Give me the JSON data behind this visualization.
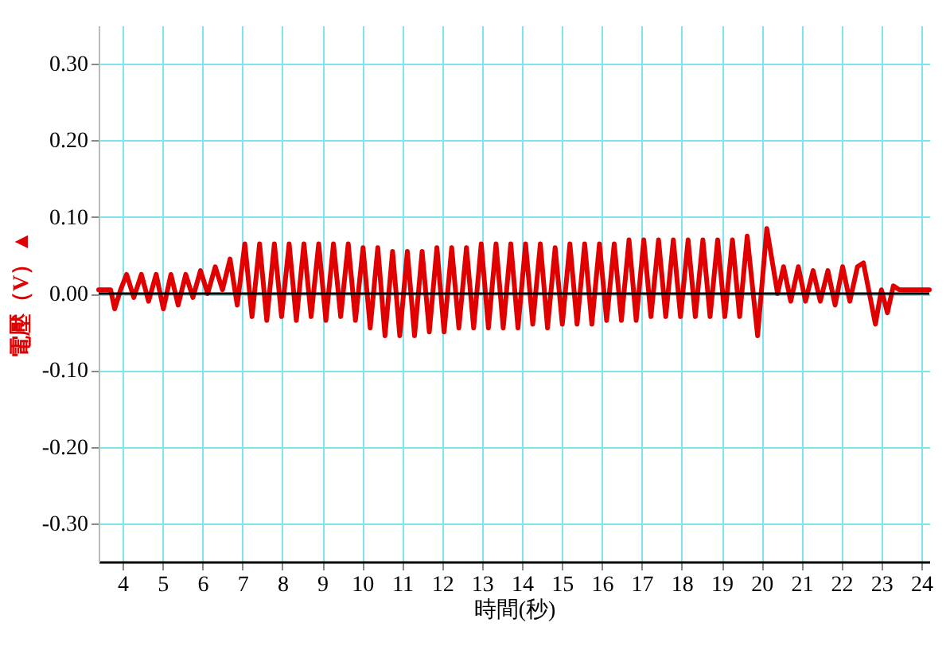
{
  "chart_data": {
    "type": "line",
    "xlabel": "時間(秒)",
    "ylabel": "電壓（V）▲",
    "xlim": [
      3.4,
      24.2
    ],
    "xticks": [
      4,
      5,
      6,
      7,
      8,
      9,
      10,
      11,
      12,
      13,
      14,
      15,
      16,
      17,
      18,
      19,
      20,
      21,
      22,
      23,
      24
    ],
    "ylim": [
      -0.35,
      0.35
    ],
    "yticks": [
      {
        "value": -0.3,
        "label": "-0.30"
      },
      {
        "value": -0.2,
        "label": "-0.20"
      },
      {
        "value": -0.1,
        "label": "-0.10"
      },
      {
        "value": 0,
        "label": "0.00"
      },
      {
        "value": 0.1,
        "label": "0.10"
      },
      {
        "value": 0.2,
        "label": "0.20"
      },
      {
        "value": 0.3,
        "label": "0.30"
      }
    ],
    "grid": true,
    "marker": "none",
    "line_style": "solid",
    "ref_lines": [
      {
        "axis": "y",
        "value": 0,
        "color": "#000000"
      }
    ],
    "series": [
      {
        "color": "#e00000",
        "x": [
          3.4,
          3.7,
          3.8,
          3.95,
          4.1,
          4.28,
          4.47,
          4.65,
          4.84,
          5.02,
          5.21,
          5.39,
          5.58,
          5.76,
          5.95,
          6.13,
          6.32,
          6.5,
          6.69,
          6.87,
          7.06,
          7.24,
          7.43,
          7.61,
          7.8,
          7.98,
          8.17,
          8.35,
          8.54,
          8.72,
          8.91,
          9.09,
          9.28,
          9.46,
          9.65,
          9.83,
          10.02,
          10.2,
          10.39,
          10.57,
          10.76,
          10.94,
          11.13,
          11.31,
          11.5,
          11.68,
          11.87,
          12.05,
          12.24,
          12.42,
          12.61,
          12.79,
          12.98,
          13.16,
          13.35,
          13.53,
          13.72,
          13.9,
          14.09,
          14.27,
          14.46,
          14.64,
          14.83,
          15.01,
          15.2,
          15.38,
          15.57,
          15.75,
          15.94,
          16.12,
          16.31,
          16.49,
          16.68,
          16.86,
          17.05,
          17.23,
          17.42,
          17.6,
          17.79,
          17.97,
          18.16,
          18.34,
          18.53,
          18.71,
          18.9,
          19.08,
          19.27,
          19.45,
          19.64,
          19.9,
          20.13,
          20.4,
          20.55,
          20.73,
          20.92,
          21.1,
          21.29,
          21.47,
          21.66,
          21.84,
          22.03,
          22.21,
          22.4,
          22.55,
          22.85,
          23.0,
          23.15,
          23.3,
          23.45,
          24.2
        ],
        "values": [
          0.005,
          0.005,
          -0.02,
          0.005,
          0.025,
          -0.005,
          0.025,
          -0.01,
          0.025,
          -0.02,
          0.025,
          -0.015,
          0.025,
          -0.005,
          0.03,
          0,
          0.035,
          0.005,
          0.045,
          -0.015,
          0.065,
          -0.03,
          0.065,
          -0.035,
          0.065,
          -0.03,
          0.065,
          -0.035,
          0.065,
          -0.03,
          0.065,
          -0.035,
          0.065,
          -0.03,
          0.065,
          -0.035,
          0.06,
          -0.045,
          0.06,
          -0.055,
          0.055,
          -0.055,
          0.055,
          -0.055,
          0.055,
          -0.05,
          0.06,
          -0.05,
          0.06,
          -0.045,
          0.06,
          -0.045,
          0.065,
          -0.045,
          0.065,
          -0.045,
          0.065,
          -0.045,
          0.065,
          -0.04,
          0.065,
          -0.045,
          0.06,
          -0.04,
          0.065,
          -0.04,
          0.065,
          -0.04,
          0.065,
          -0.035,
          0.065,
          -0.035,
          0.07,
          -0.035,
          0.07,
          -0.03,
          0.07,
          -0.03,
          0.07,
          -0.03,
          0.07,
          -0.03,
          0.07,
          -0.03,
          0.07,
          -0.03,
          0.07,
          -0.03,
          0.075,
          -0.055,
          0.085,
          0,
          0.035,
          -0.01,
          0.035,
          -0.01,
          0.03,
          -0.01,
          0.03,
          -0.015,
          0.035,
          -0.01,
          0.035,
          0.04,
          -0.04,
          0.005,
          -0.025,
          0.01,
          0.005,
          0.005
        ]
      }
    ]
  }
}
